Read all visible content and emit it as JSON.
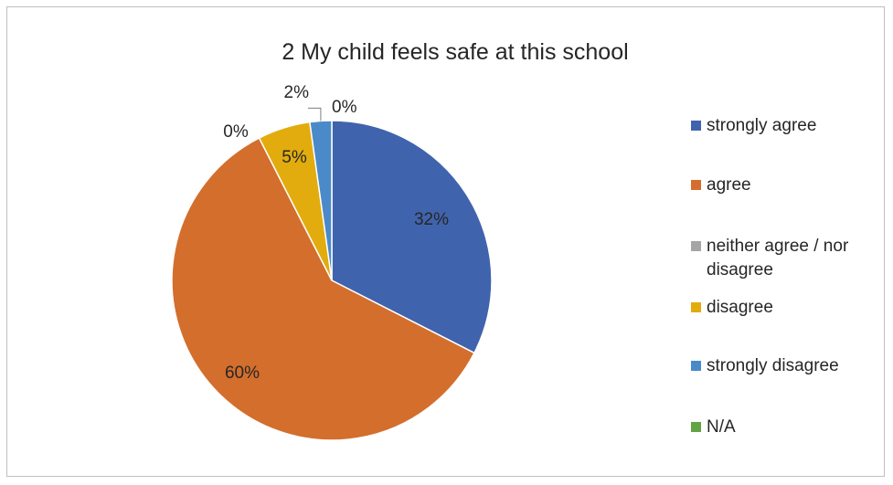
{
  "chart_data": {
    "type": "pie",
    "title": "2 My child feels safe at this school",
    "legend_position": "right",
    "categories": [
      "strongly agree",
      "agree",
      "neither agree / nor disagree",
      "disagree",
      "strongly disagree",
      "N/A"
    ],
    "values": [
      32.5,
      60.0,
      0.0,
      5.3,
      2.2,
      0.0
    ],
    "data_labels": [
      "32%",
      "60%",
      "0%",
      "5%",
      "2%",
      "0%"
    ],
    "legend_lines": [
      [
        "strongly agree"
      ],
      [
        "agree"
      ],
      [
        "neither agree / nor",
        "disagree"
      ],
      [
        "disagree"
      ],
      [
        "strongly disagree"
      ],
      [
        "N/A"
      ]
    ],
    "colors": [
      "#4063ad",
      "#d46e2c",
      "#a5a5a5",
      "#e2ac0e",
      "#4a8ac9",
      "#62a445"
    ]
  }
}
